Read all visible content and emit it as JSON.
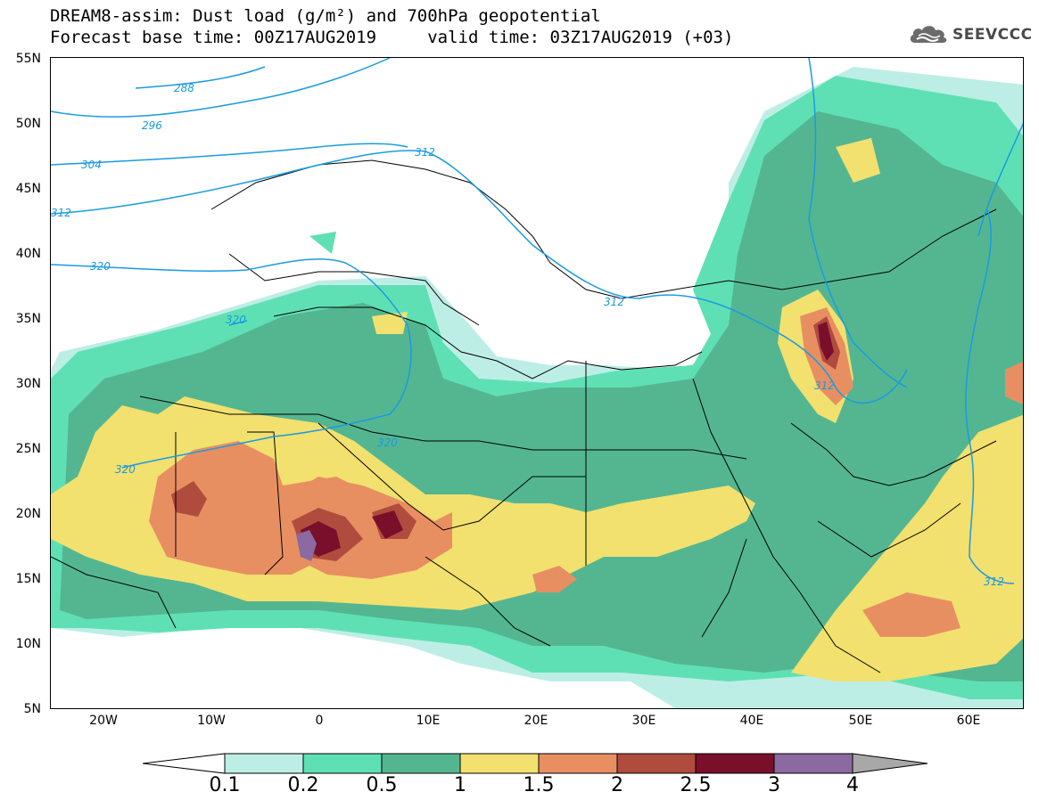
{
  "header": {
    "title_line1": "DREAM8-assim: Dust load (g/m²) and 700hPa geopotential",
    "title_line2": "Forecast base time: 00Z17AUG2019     valid time: 03Z17AUG2019 (+03)",
    "logo_text": "SEEVCCC"
  },
  "map": {
    "lat_labels": [
      "55N",
      "50N",
      "45N",
      "40N",
      "35N",
      "30N",
      "25N",
      "20N",
      "15N",
      "10N",
      "5N"
    ],
    "lon_labels": [
      "20W",
      "10W",
      "0",
      "10E",
      "20E",
      "30E",
      "40E",
      "50E",
      "60E"
    ],
    "lat_range": [
      5,
      55
    ],
    "lon_range": [
      -25,
      65
    ],
    "contour_color": "#1a9be0",
    "contour_labels": [
      "288",
      "296",
      "304",
      "312",
      "320",
      "320",
      "320",
      "320",
      "312",
      "312",
      "312",
      "312"
    ]
  },
  "colorbar": {
    "labels": [
      "0.1",
      "0.2",
      "0.5",
      "1",
      "1.5",
      "2",
      "2.5",
      "3",
      "4"
    ],
    "colors": [
      "#ffffff",
      "#bdeee6",
      "#5fe0b4",
      "#54b691",
      "#f2e06f",
      "#e88f62",
      "#b04c3e",
      "#7a0f2c",
      "#8a6aa0",
      "#a8a8a8"
    ]
  }
}
